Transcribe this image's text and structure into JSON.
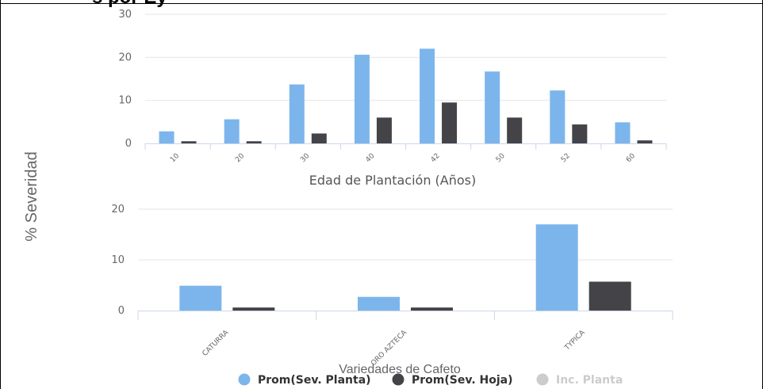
{
  "title_fragment": "s por Ey",
  "y_axis_label": "% Severidad",
  "colors": {
    "planta": "#7cb5ec",
    "hoja": "#434348",
    "inactive": "#cccccc",
    "grid": "#e6e6e6",
    "axis": "#ccd6eb"
  },
  "legend": [
    {
      "label": "Prom(Sev. Planta)",
      "color": "#7cb5ec",
      "active": true
    },
    {
      "label": "Prom(Sev. Hoja)",
      "color": "#434348",
      "active": true
    },
    {
      "label": "Inc. Planta",
      "color": "#cccccc",
      "active": false
    }
  ],
  "chart_data": [
    {
      "type": "bar",
      "xlabel": "Edad de Plantación (Años)",
      "ylabel": "% Severidad",
      "ylim": [
        0,
        30
      ],
      "yticks": [
        0,
        10,
        20,
        30
      ],
      "grid": true,
      "categories": [
        "10",
        "20",
        "30",
        "40",
        "42",
        "50",
        "52",
        "60"
      ],
      "series": [
        {
          "name": "Prom(Sev. Planta)",
          "values": [
            2.8,
            5.6,
            13.7,
            20.6,
            22.0,
            16.7,
            12.3,
            4.9
          ]
        },
        {
          "name": "Prom(Sev. Hoja)",
          "values": [
            0.5,
            0.5,
            2.3,
            6.0,
            9.5,
            6.0,
            4.4,
            0.7
          ]
        }
      ]
    },
    {
      "type": "bar",
      "xlabel": "Variedades de Cafeto",
      "ylabel": "% Severidad",
      "ylim": [
        0,
        20
      ],
      "yticks": [
        0,
        10,
        20
      ],
      "grid": true,
      "categories": [
        "CATURRA",
        "ORO AZTECA",
        "TYPICA"
      ],
      "series": [
        {
          "name": "Prom(Sev. Planta)",
          "values": [
            4.9,
            2.7,
            17.0
          ]
        },
        {
          "name": "Prom(Sev. Hoja)",
          "values": [
            0.6,
            0.6,
            5.7
          ]
        }
      ],
      "legend_position": "bottom-center"
    }
  ]
}
